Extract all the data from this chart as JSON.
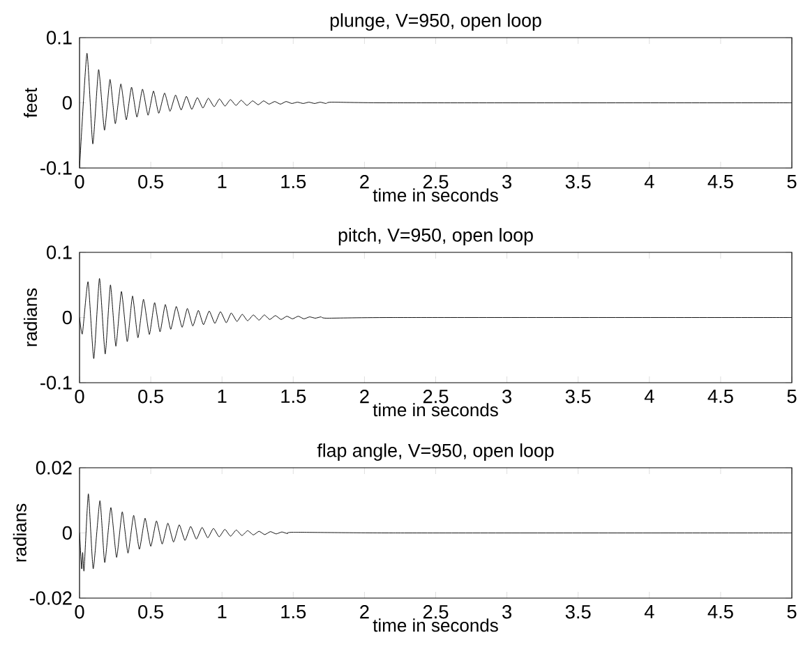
{
  "chart_data": [
    {
      "type": "line",
      "title": "plunge, V=950, open loop",
      "xlabel": "time in seconds",
      "ylabel": "feet",
      "x": [
        0,
        0.052,
        0.093,
        0.134,
        0.175,
        0.214,
        0.251,
        0.29,
        0.328,
        0.365,
        0.403,
        0.442,
        0.481,
        0.519,
        0.556,
        0.597,
        0.635,
        0.674,
        0.713,
        0.75,
        0.788,
        0.827,
        0.866,
        0.904,
        0.945,
        0.982,
        1.021,
        1.059,
        1.098,
        1.135,
        1.175,
        1.215,
        1.254,
        1.292,
        1.33,
        1.37,
        1.41,
        1.45,
        1.49,
        1.53,
        1.57,
        1.61,
        1.65,
        1.69,
        1.73,
        1.77,
        2.2,
        5
      ],
      "series": [
        {
          "color": "#000000",
          "values": [
            -0.1,
            0.076,
            -0.063,
            0.051,
            -0.042,
            0.036,
            -0.032,
            0.029,
            -0.026,
            0.024,
            -0.022,
            0.021,
            -0.019,
            0.018,
            -0.016,
            0.015,
            -0.013,
            0.012,
            -0.011,
            0.01,
            -0.01,
            0.008,
            -0.008,
            0.007,
            -0.006,
            0.006,
            -0.005,
            0.005,
            -0.004,
            0.004,
            -0.004,
            0.003,
            -0.003,
            0.003,
            -0.002,
            0.002,
            -0.002,
            0.002,
            -0.001,
            0.001,
            -0.001,
            0.001,
            -0.001,
            0.001,
            -0.001,
            0.001,
            0,
            0
          ]
        }
      ],
      "xlim": [
        0,
        5
      ],
      "ylim": [
        -0.1,
        0.1
      ],
      "xticks": [
        0,
        0.5,
        1,
        1.5,
        2,
        2.5,
        3,
        3.5,
        4,
        4.5,
        5
      ],
      "yticks": [
        -0.1,
        0,
        0.1
      ]
    },
    {
      "type": "line",
      "title": "pitch, V=950, open loop",
      "xlabel": "time in seconds",
      "ylabel": "radians",
      "x": [
        0,
        0.02,
        0.06,
        0.1,
        0.14,
        0.18,
        0.217,
        0.255,
        0.294,
        0.335,
        0.372,
        0.41,
        0.449,
        0.49,
        0.527,
        0.565,
        0.602,
        0.64,
        0.679,
        0.72,
        0.757,
        0.795,
        0.834,
        0.87,
        0.91,
        0.95,
        0.989,
        1.03,
        1.065,
        1.105,
        1.142,
        1.18,
        1.22,
        1.26,
        1.297,
        1.335,
        1.375,
        1.415,
        1.455,
        1.495,
        1.535,
        1.575,
        1.615,
        1.655,
        1.695,
        1.735,
        2.2,
        5
      ],
      "series": [
        {
          "color": "#000000",
          "values": [
            0,
            -0.025,
            0.055,
            -0.063,
            0.06,
            -0.056,
            0.05,
            -0.044,
            0.04,
            -0.037,
            0.033,
            -0.031,
            0.028,
            -0.026,
            0.023,
            -0.022,
            0.02,
            -0.018,
            0.017,
            -0.015,
            0.014,
            -0.013,
            0.011,
            -0.011,
            0.01,
            -0.009,
            0.009,
            -0.008,
            0.007,
            -0.006,
            0.005,
            -0.005,
            0.004,
            -0.004,
            0.004,
            -0.003,
            0.003,
            -0.003,
            0.002,
            -0.002,
            0.002,
            -0.002,
            0.001,
            -0.001,
            0.001,
            -0.001,
            0,
            0
          ]
        }
      ],
      "xlim": [
        0,
        5
      ],
      "ylim": [
        -0.1,
        0.1
      ],
      "xticks": [
        0,
        0.5,
        1,
        1.5,
        2,
        2.5,
        3,
        3.5,
        4,
        4.5,
        5
      ],
      "yticks": [
        -0.1,
        0,
        0.1
      ]
    },
    {
      "type": "line",
      "title": "flap angle, V=950, open loop",
      "xlabel": "time in seconds",
      "ylabel": "radians",
      "x": [
        0,
        0.015,
        0.022,
        0.032,
        0.062,
        0.096,
        0.143,
        0.177,
        0.22,
        0.26,
        0.3,
        0.34,
        0.38,
        0.42,
        0.46,
        0.5,
        0.54,
        0.58,
        0.62,
        0.66,
        0.7,
        0.74,
        0.78,
        0.82,
        0.86,
        0.9,
        0.94,
        0.98,
        1.02,
        1.06,
        1.1,
        1.14,
        1.18,
        1.22,
        1.26,
        1.3,
        1.34,
        1.38,
        1.42,
        1.46,
        1.5,
        2.2,
        5
      ],
      "series": [
        {
          "color": "#000000",
          "values": [
            0,
            -0.011,
            -0.006,
            -0.0115,
            0.012,
            -0.011,
            0.0099,
            -0.0091,
            0.0078,
            -0.0075,
            0.0065,
            -0.0062,
            0.0054,
            -0.005,
            0.0045,
            -0.0041,
            0.0037,
            -0.0034,
            0.003,
            -0.0028,
            0.0025,
            -0.0023,
            0.002,
            -0.0019,
            0.0017,
            -0.0015,
            0.0014,
            -0.0012,
            0.0011,
            -0.001,
            0.0009,
            -0.0008,
            0.0007,
            -0.0006,
            0.0005,
            -0.0005,
            0.0004,
            -0.0003,
            0.0003,
            -0.0002,
            0.0002,
            0,
            0
          ]
        }
      ],
      "xlim": [
        0,
        5
      ],
      "ylim": [
        -0.02,
        0.02
      ],
      "xticks": [
        0,
        0.5,
        1,
        1.5,
        2,
        2.5,
        3,
        3.5,
        4,
        4.5,
        5
      ],
      "yticks": [
        -0.02,
        0,
        0.02
      ]
    }
  ]
}
